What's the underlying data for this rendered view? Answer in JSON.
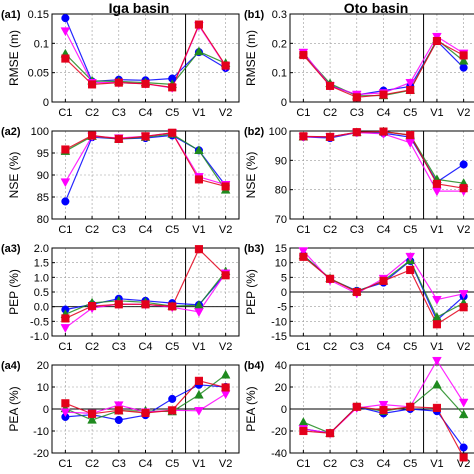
{
  "titles": {
    "left": "Iga basin",
    "right": "Oto basin"
  },
  "styles": {
    "Blue": {
      "color": "#0000ff",
      "marker": "circle"
    },
    "Green": {
      "color": "#1f8a1f",
      "marker": "triangle-up"
    },
    "Magenta": {
      "color": "#ff00ff",
      "marker": "triangle-down"
    },
    "Red": {
      "color": "#e3001b",
      "marker": "square"
    }
  },
  "chart_data": [
    {
      "id": "a1",
      "label": "(a1)",
      "type": "line",
      "ylabel": "RMSE (m)",
      "categories": [
        "C1",
        "C2",
        "C3",
        "C4",
        "C5",
        "V1",
        "V2"
      ],
      "ylim": [
        0,
        0.15
      ],
      "yticks": [
        0,
        0.05,
        0.1,
        0.15
      ],
      "yticklabels": [
        "0",
        "0.05",
        "0.1",
        "0.15"
      ],
      "series": [
        {
          "style": "Blue",
          "values": [
            0.143,
            0.035,
            0.038,
            0.037,
            0.04,
            0.085,
            0.058
          ]
        },
        {
          "style": "Green",
          "values": [
            0.082,
            0.036,
            0.035,
            0.033,
            0.03,
            0.086,
            0.066
          ]
        },
        {
          "style": "Magenta",
          "values": [
            0.121,
            0.033,
            0.033,
            0.031,
            0.024,
            0.13,
            0.061
          ]
        },
        {
          "style": "Red",
          "values": [
            0.074,
            0.03,
            0.033,
            0.031,
            0.025,
            0.132,
            0.062
          ]
        }
      ]
    },
    {
      "id": "b1",
      "label": "(b1)",
      "type": "line",
      "ylabel": "RMSE (m)",
      "categories": [
        "C1",
        "C2",
        "C3",
        "C4",
        "C5",
        "V1",
        "V2"
      ],
      "ylim": [
        0,
        0.3
      ],
      "yticks": [
        0,
        0.1,
        0.2,
        0.3
      ],
      "yticklabels": [
        "0",
        "0.1",
        "0.2",
        "0.3"
      ],
      "series": [
        {
          "style": "Blue",
          "values": [
            0.165,
            0.057,
            0.024,
            0.039,
            0.053,
            0.208,
            0.117
          ]
        },
        {
          "style": "Green",
          "values": [
            0.163,
            0.063,
            0.021,
            0.022,
            0.04,
            0.213,
            0.14
          ]
        },
        {
          "style": "Magenta",
          "values": [
            0.169,
            0.055,
            0.026,
            0.031,
            0.066,
            0.223,
            0.166
          ]
        },
        {
          "style": "Red",
          "values": [
            0.16,
            0.055,
            0.016,
            0.025,
            0.041,
            0.208,
            0.159
          ]
        }
      ]
    },
    {
      "id": "a2",
      "label": "(a2)",
      "type": "line",
      "ylabel": "NSE (%)",
      "categories": [
        "C1",
        "C2",
        "C3",
        "C4",
        "C5",
        "V1",
        "V2"
      ],
      "ylim": [
        80,
        100
      ],
      "yticks": [
        80,
        85,
        90,
        95,
        100
      ],
      "yticklabels": [
        "80",
        "85",
        "90",
        "95",
        "100"
      ],
      "series": [
        {
          "style": "Blue",
          "values": [
            84.0,
            98.6,
            98.2,
            98.4,
            99.0,
            95.6,
            87.6
          ]
        },
        {
          "style": "Green",
          "values": [
            95.4,
            98.8,
            98.2,
            98.6,
            99.3,
            95.6,
            86.6
          ]
        },
        {
          "style": "Magenta",
          "values": [
            88.4,
            98.8,
            98.4,
            98.8,
            99.6,
            89.6,
            87.8
          ]
        },
        {
          "style": "Red",
          "values": [
            95.8,
            99.0,
            98.2,
            98.8,
            99.6,
            89.0,
            87.4
          ]
        }
      ]
    },
    {
      "id": "b2",
      "label": "(b2)",
      "type": "line",
      "ylabel": "NSE (%)",
      "categories": [
        "C1",
        "C2",
        "C3",
        "C4",
        "C5",
        "V1",
        "V2"
      ],
      "ylim": [
        70,
        100
      ],
      "yticks": [
        70,
        80,
        90,
        100
      ],
      "yticklabels": [
        "70",
        "80",
        "90",
        "100"
      ],
      "series": [
        {
          "style": "Blue",
          "values": [
            98.0,
            97.6,
            99.5,
            99.3,
            97.9,
            82.6,
            88.6
          ]
        },
        {
          "style": "Green",
          "values": [
            98.0,
            98.0,
            99.5,
            99.8,
            98.6,
            83.5,
            82.2
          ]
        },
        {
          "style": "Magenta",
          "values": [
            98.0,
            98.0,
            99.5,
            99.0,
            96.0,
            79.5,
            79.5
          ]
        },
        {
          "style": "Red",
          "values": [
            98.2,
            98.0,
            99.6,
            99.8,
            98.6,
            82.0,
            80.5
          ]
        }
      ]
    },
    {
      "id": "a3",
      "label": "(a3)",
      "type": "line",
      "ylabel": "PEP (%)",
      "categories": [
        "C1",
        "C2",
        "C3",
        "C4",
        "C5",
        "V1",
        "V2"
      ],
      "ylim": [
        -1.0,
        2.0
      ],
      "yticks": [
        -1.0,
        -0.5,
        0.0,
        0.5,
        1.0,
        1.5,
        2.0
      ],
      "yticklabels": [
        "-1.0",
        "-0.5",
        "0.0",
        "0.5",
        "1.0",
        "1.5",
        "2.0"
      ],
      "series": [
        {
          "style": "Blue",
          "values": [
            -0.1,
            0.08,
            0.27,
            0.2,
            0.12,
            0.06,
            1.12
          ]
        },
        {
          "style": "Green",
          "values": [
            -0.26,
            0.13,
            0.2,
            0.15,
            0.02,
            0.05,
            1.2
          ]
        },
        {
          "style": "Magenta",
          "values": [
            -0.72,
            -0.05,
            0.09,
            0.08,
            -0.02,
            -0.18,
            1.14
          ]
        },
        {
          "style": "Red",
          "values": [
            -0.4,
            0.02,
            0.08,
            0.08,
            0.01,
            1.96,
            1.07
          ]
        }
      ]
    },
    {
      "id": "b3",
      "label": "(b3)",
      "type": "line",
      "ylabel": "PEP (%)",
      "categories": [
        "C1",
        "C2",
        "C3",
        "C4",
        "C5",
        "V1",
        "V2"
      ],
      "ylim": [
        -15,
        15
      ],
      "yticks": [
        -15,
        -10,
        -5,
        0,
        5,
        10,
        15
      ],
      "yticklabels": [
        "-15",
        "-10",
        "-5",
        "0",
        "5",
        "10",
        "15"
      ],
      "series": [
        {
          "style": "Blue",
          "values": [
            12.5,
            4.4,
            0.4,
            3.2,
            10.6,
            -9.6,
            -1.5
          ]
        },
        {
          "style": "Green",
          "values": [
            12.4,
            4.6,
            0.2,
            3.8,
            10.8,
            -8.6,
            -3.8
          ]
        },
        {
          "style": "Magenta",
          "values": [
            14.0,
            4.0,
            -0.5,
            4.6,
            12.1,
            -2.6,
            -0.6
          ]
        },
        {
          "style": "Red",
          "values": [
            12.0,
            4.5,
            0.0,
            3.8,
            7.5,
            -11.0,
            -5.2
          ]
        }
      ]
    },
    {
      "id": "a4",
      "label": "(a4)",
      "type": "line",
      "ylabel": "PEA (%)",
      "categories": [
        "C1",
        "C2",
        "C3",
        "C4",
        "C5",
        "V1",
        "V2"
      ],
      "ylim": [
        -20,
        20
      ],
      "yticks": [
        -20,
        -10,
        0,
        10,
        20
      ],
      "yticklabels": [
        "-20",
        "-10",
        "0",
        "10",
        "20"
      ],
      "series": [
        {
          "style": "Blue",
          "values": [
            -3.6,
            -2.6,
            -5.0,
            -2.8,
            4.6,
            11.0,
            10.0
          ]
        },
        {
          "style": "Green",
          "values": [
            0.2,
            -5.0,
            -0.8,
            -0.8,
            -1.2,
            6.4,
            15.5
          ]
        },
        {
          "style": "Magenta",
          "values": [
            -1.4,
            -2.0,
            1.8,
            -1.4,
            -0.6,
            -0.8,
            6.8
          ]
        },
        {
          "style": "Red",
          "values": [
            2.6,
            -2.2,
            -0.6,
            -1.8,
            -0.6,
            12.8,
            9.8
          ]
        }
      ]
    },
    {
      "id": "b4",
      "label": "(b4)",
      "type": "line",
      "ylabel": "PEA (%)",
      "categories": [
        "C1",
        "C2",
        "C3",
        "C4",
        "C5",
        "V1",
        "V2"
      ],
      "ylim": [
        -40,
        40
      ],
      "yticks": [
        -40,
        -20,
        0,
        20,
        40
      ],
      "yticklabels": [
        "-40",
        "-20",
        "0",
        "20",
        "40"
      ],
      "series": [
        {
          "style": "Blue",
          "values": [
            -18,
            -22,
            2,
            -4,
            0,
            -2,
            -35
          ]
        },
        {
          "style": "Green",
          "values": [
            -12,
            -22,
            2,
            -2,
            2,
            22,
            -5
          ]
        },
        {
          "style": "Magenta",
          "values": [
            -18,
            -22,
            1,
            4,
            2,
            44,
            6
          ]
        },
        {
          "style": "Red",
          "values": [
            -20,
            -22,
            2,
            -1,
            2,
            1,
            -44
          ]
        }
      ]
    }
  ]
}
